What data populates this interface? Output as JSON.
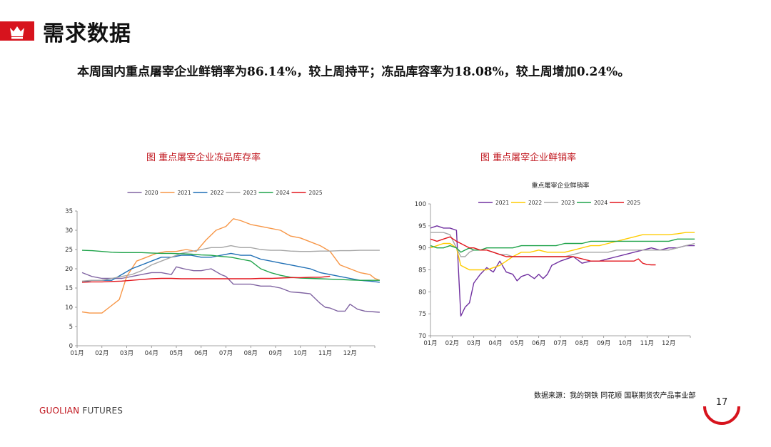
{
  "header": {
    "title": "需求数据",
    "crown_icon": "crown-icon"
  },
  "summary": "本周国内重点屠宰企业鲜销率为86.14%，较上周持平；冻品库容率为18.08%，较上周增加0.24%。",
  "footer": {
    "source": "数据来源：我的钢铁  同花顺  国联期货农产品事业部",
    "brand_part1": "GUOLIAN",
    "brand_part2": " FUTURES",
    "page_number": "17"
  },
  "chart_data": [
    {
      "type": "line",
      "title": "图  重点屠宰企业冻品库存率",
      "inner_title": "",
      "categories": [
        "01月",
        "02月",
        "03月",
        "04月",
        "05月",
        "06月",
        "07月",
        "08月",
        "09月",
        "10月",
        "11月",
        "12月"
      ],
      "ylim": [
        0,
        35
      ],
      "yticks": [
        0,
        5,
        10,
        15,
        20,
        25,
        30,
        35
      ],
      "series": [
        {
          "name": "2020",
          "color": "#8064a2",
          "x": [
            0.2,
            0.6,
            1,
            1.4,
            1.8,
            2.2,
            2.6,
            3,
            3.4,
            3.8,
            4,
            4.3,
            4.7,
            5,
            5.4,
            5.8,
            6,
            6.3,
            6.6,
            7,
            7.4,
            7.8,
            8.2,
            8.6,
            9,
            9.4,
            9.8,
            10,
            10.2,
            10.5,
            10.8,
            11,
            11.3,
            11.6,
            12,
            12.2
          ],
          "y": [
            19,
            18,
            17.5,
            17.5,
            17.5,
            18,
            18.5,
            19,
            19,
            18.5,
            20.5,
            20,
            19.5,
            19.5,
            20,
            18.5,
            18,
            16,
            16,
            16,
            15.5,
            15.5,
            15,
            14,
            13.8,
            13.5,
            11,
            10,
            9.8,
            9,
            9,
            10.8,
            9.5,
            9,
            8.8,
            8.7
          ]
        },
        {
          "name": "2021",
          "color": "#f79646",
          "x": [
            0.2,
            0.5,
            0.8,
            1,
            1.3,
            1.7,
            2,
            2.4,
            2.8,
            3.2,
            3.6,
            4,
            4.4,
            4.8,
            5.2,
            5.6,
            6,
            6.3,
            6.6,
            7,
            7.4,
            7.8,
            8.2,
            8.6,
            9,
            9.4,
            9.8,
            10.2,
            10.6,
            11,
            11.4,
            11.8,
            12,
            12.2
          ],
          "y": [
            8.8,
            8.5,
            8.5,
            8.5,
            10,
            12,
            18,
            22,
            23,
            24,
            24.5,
            24.5,
            25,
            24.5,
            27.5,
            30,
            31,
            33,
            32.5,
            31.5,
            31,
            30.5,
            30,
            28.5,
            28,
            27,
            26,
            24.5,
            21,
            20,
            19,
            18.5,
            17.5,
            17
          ]
        },
        {
          "name": "2022",
          "color": "#1f6fb5",
          "x": [
            0.2,
            0.6,
            1,
            1.4,
            1.8,
            2.2,
            2.6,
            3,
            3.4,
            3.8,
            4.2,
            4.6,
            5,
            5.4,
            5.8,
            6.2,
            6.6,
            7,
            7.4,
            7.8,
            8.2,
            8.6,
            9,
            9.4,
            9.8,
            10.2,
            10.6,
            11,
            11.4,
            11.8,
            12.2
          ],
          "y": [
            16.5,
            17,
            17,
            17,
            18.5,
            20,
            21,
            22,
            23,
            23,
            23.5,
            23.5,
            23,
            23,
            23.5,
            24,
            23.5,
            23.5,
            22.5,
            22,
            21.5,
            21,
            20.5,
            20,
            19,
            18.5,
            18,
            17.5,
            17,
            16.8,
            16.5
          ]
        },
        {
          "name": "2023",
          "color": "#a6a6a6",
          "x": [
            0.2,
            0.6,
            1,
            1.4,
            1.8,
            2.2,
            2.6,
            3,
            3.4,
            3.8,
            4.2,
            4.6,
            5,
            5.4,
            5.8,
            6.2,
            6.6,
            7,
            7.4,
            7.8,
            8.2,
            8.6,
            9,
            9.4,
            9.8,
            10.2,
            10.6,
            11,
            11.4,
            11.8,
            12.2
          ],
          "y": [
            16.8,
            17,
            17,
            17.5,
            18,
            18.5,
            19.5,
            21,
            22,
            23,
            24,
            24.5,
            25,
            25.5,
            25.5,
            26,
            25.5,
            25.5,
            25,
            24.8,
            24.8,
            24.6,
            24.5,
            24.5,
            24.6,
            24.6,
            24.7,
            24.7,
            24.8,
            24.8,
            24.8
          ]
        },
        {
          "name": "2024",
          "color": "#1fa34a",
          "x": [
            0.2,
            0.6,
            1,
            1.4,
            1.8,
            2.2,
            2.6,
            3,
            3.4,
            3.8,
            4.2,
            4.6,
            5,
            5.4,
            5.8,
            6.2,
            6.6,
            7,
            7.4,
            7.8,
            8.2,
            8.6,
            9,
            9.4,
            9.8,
            10.2,
            10.6,
            11,
            11.4,
            11.8,
            12.2
          ],
          "y": [
            24.8,
            24.7,
            24.5,
            24.3,
            24.2,
            24.2,
            24.2,
            24.1,
            24,
            24,
            23.9,
            23.8,
            23.6,
            23.5,
            23.2,
            23,
            22.5,
            22,
            20,
            19,
            18.3,
            17.8,
            17.6,
            17.5,
            17.4,
            17.3,
            17.2,
            17.1,
            17,
            17,
            17
          ]
        },
        {
          "name": "2025",
          "color": "#e3171e",
          "x": [
            0.2,
            0.6,
            1,
            1.4,
            1.8,
            2.2,
            2.6,
            3,
            3.4,
            3.8,
            4.2,
            4.6,
            5,
            5.4,
            5.8,
            6.2,
            6.6,
            7,
            7.4,
            7.8,
            8.2,
            8.6,
            9,
            9.4,
            9.8,
            10.2
          ],
          "y": [
            16.5,
            16.6,
            16.6,
            16.7,
            16.8,
            17,
            17.2,
            17.4,
            17.5,
            17.5,
            17.4,
            17.4,
            17.4,
            17.4,
            17.4,
            17.4,
            17.4,
            17.4,
            17.5,
            17.5,
            17.6,
            17.7,
            17.7,
            17.8,
            17.8,
            18.08
          ]
        }
      ]
    },
    {
      "type": "line",
      "title": "图  重点屠宰企业鲜销率",
      "inner_title": "重点屠宰企业鲜销率",
      "categories": [
        "01月",
        "02月",
        "03月",
        "04月",
        "05月",
        "06月",
        "07月",
        "08月",
        "09月",
        "10月",
        "11月",
        "12月"
      ],
      "ylim": [
        70,
        100
      ],
      "yticks": [
        70,
        75,
        80,
        85,
        90,
        95,
        100
      ],
      "series": [
        {
          "name": "2021",
          "color": "#7030a0",
          "x": [
            0,
            0.3,
            0.6,
            0.9,
            1.2,
            1.4,
            1.6,
            1.8,
            2,
            2.3,
            2.6,
            2.9,
            3.2,
            3.5,
            3.8,
            4,
            4.2,
            4.5,
            4.8,
            5,
            5.2,
            5.4,
            5.6,
            5.8,
            6,
            6.3,
            6.6,
            7,
            7.4,
            7.8,
            8.2,
            8.6,
            9,
            9.4,
            9.8,
            10.2,
            10.6,
            11,
            11.4,
            11.8,
            12.2
          ],
          "y": [
            94.5,
            95,
            94.5,
            94.5,
            94,
            74.5,
            76.5,
            77.5,
            82,
            84,
            85.5,
            84.5,
            87,
            84.5,
            84,
            82.5,
            83.5,
            84,
            83,
            84,
            83,
            84,
            86,
            86.5,
            87,
            87.5,
            88,
            86.5,
            87,
            87,
            87.5,
            88,
            88.5,
            89,
            89.5,
            90,
            89.5,
            90,
            90,
            90.5,
            90.5
          ]
        },
        {
          "name": "2022",
          "color": "#ffcc00",
          "x": [
            0,
            0.3,
            0.6,
            0.9,
            1.2,
            1.4,
            1.6,
            1.8,
            2,
            2.3,
            2.6,
            2.9,
            3.2,
            3.5,
            3.8,
            4.2,
            4.6,
            5,
            5.4,
            5.8,
            6.2,
            6.6,
            7,
            7.4,
            7.8,
            8.2,
            8.6,
            9,
            9.4,
            9.8,
            10.2,
            10.6,
            11,
            11.4,
            11.8,
            12.2
          ],
          "y": [
            90,
            90.5,
            91,
            91,
            90,
            86,
            85.5,
            85,
            85,
            85,
            85,
            85.5,
            86,
            87,
            88,
            89,
            89,
            89.5,
            89,
            89,
            89,
            89.5,
            90,
            90.5,
            90.5,
            91,
            91.5,
            92,
            92.5,
            93,
            93,
            93,
            93,
            93.2,
            93.5,
            93.5
          ]
        },
        {
          "name": "2023",
          "color": "#a6a6a6",
          "x": [
            0,
            0.3,
            0.6,
            0.9,
            1.2,
            1.4,
            1.6,
            1.8,
            2,
            2.3,
            2.6,
            2.9,
            3.2,
            3.5,
            3.8,
            4.2,
            4.6,
            5,
            5.4,
            5.8,
            6.2,
            6.6,
            7,
            7.4,
            7.8,
            8.2,
            8.6,
            9,
            9.4,
            9.8,
            10.2,
            10.6,
            11,
            11.4,
            11.8,
            12.2
          ],
          "y": [
            93.5,
            93.5,
            93.5,
            93,
            90,
            88,
            88,
            89,
            89.5,
            89.5,
            89.5,
            89,
            88.5,
            88.5,
            88,
            88,
            88,
            88,
            88,
            88,
            88,
            88.5,
            89,
            89,
            89,
            89,
            89.5,
            89.5,
            89.5,
            89.5,
            89.5,
            89.5,
            89.5,
            90,
            90.5,
            91
          ]
        },
        {
          "name": "2024",
          "color": "#1fa34a",
          "x": [
            0,
            0.3,
            0.6,
            0.9,
            1.2,
            1.4,
            1.6,
            1.8,
            2,
            2.3,
            2.6,
            2.9,
            3.2,
            3.5,
            3.8,
            4.2,
            4.6,
            5,
            5.4,
            5.8,
            6.2,
            6.6,
            7,
            7.4,
            7.8,
            8.2,
            8.6,
            9,
            9.4,
            9.8,
            10.2,
            10.6,
            11,
            11.4,
            11.8,
            12.2
          ],
          "y": [
            90.5,
            90,
            90,
            90.5,
            90,
            89,
            89.5,
            90,
            89.5,
            89.5,
            90,
            90,
            90,
            90,
            90,
            90.5,
            90.5,
            90.5,
            90.5,
            90.5,
            91,
            91,
            91,
            91.5,
            91.5,
            91.5,
            91.5,
            91.5,
            91.5,
            91.5,
            91.5,
            91.5,
            91.5,
            92,
            92,
            92
          ]
        },
        {
          "name": "2025",
          "color": "#e3171e",
          "x": [
            0,
            0.3,
            0.6,
            0.9,
            1.2,
            1.4,
            1.6,
            1.8,
            2,
            2.3,
            2.6,
            2.9,
            3.2,
            3.5,
            3.8,
            4.2,
            4.6,
            5,
            5.4,
            5.8,
            6.2,
            6.6,
            7,
            7.4,
            7.8,
            8.2,
            8.6,
            9,
            9.4,
            9.6,
            9.8,
            10,
            10.2,
            10.4
          ],
          "y": [
            92,
            91.5,
            92,
            92.5,
            91.5,
            91,
            90.5,
            90,
            90,
            89.5,
            89.5,
            89,
            88.5,
            88,
            88,
            88,
            88,
            88,
            88,
            88,
            88,
            88,
            87.5,
            87,
            87,
            87,
            87,
            87,
            87,
            87.5,
            86.5,
            86.2,
            86.14,
            86.14
          ]
        }
      ]
    }
  ]
}
